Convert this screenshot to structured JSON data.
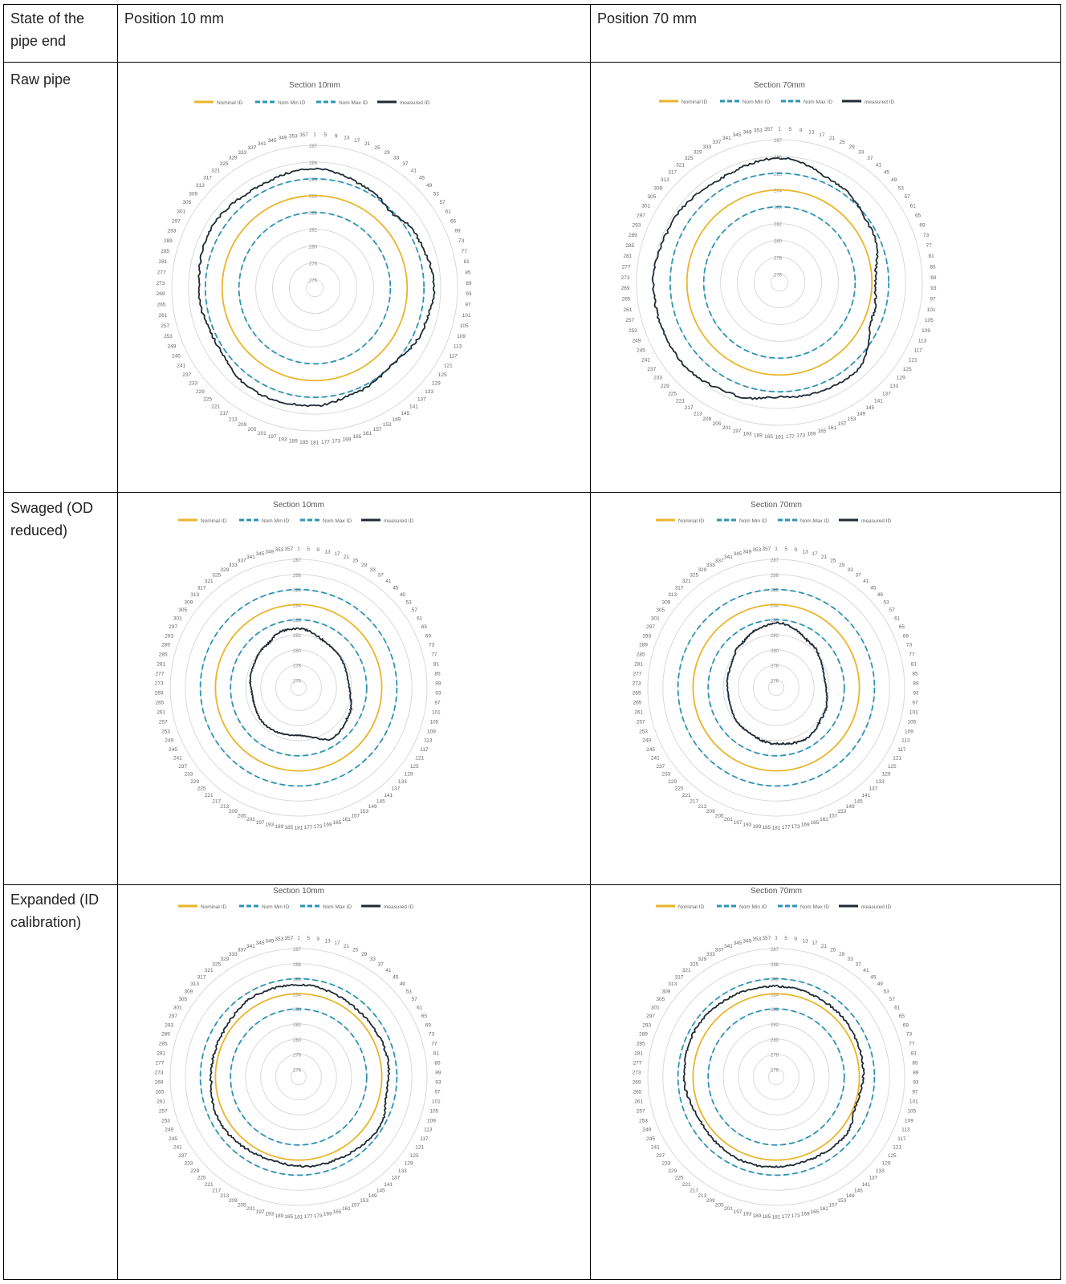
{
  "table": {
    "header": {
      "col0": "State of the pipe end",
      "col1": "Position 10 mm",
      "col2": "Position 70 mm"
    },
    "rows": [
      {
        "label": "Raw pipe"
      },
      {
        "label": "Swaged (OD reduced)"
      },
      {
        "label": "Expanded (ID calibration)"
      }
    ]
  },
  "legend": [
    "Nominal ID",
    "Nom Min ID",
    "Nom Max ID",
    "measured ID"
  ],
  "colors": {
    "nominal": "#e8b52a",
    "nom_min": "#2b93b5",
    "nom_max": "#2b93b5",
    "measured": "#1f2a33",
    "grid": "#d9d9d9"
  },
  "chart_data": [
    {
      "type": "radar",
      "title": "Section 10mm",
      "radial_ticks": [
        276,
        278,
        280,
        282,
        283,
        284,
        285,
        286,
        287
      ],
      "radial_range": [
        276,
        287
      ],
      "angle_labels": [
        "1",
        "5",
        "9",
        "13",
        "17",
        "21",
        "25",
        "29",
        "33",
        "37",
        "41",
        "45",
        "49",
        "53",
        "57",
        "61",
        "65",
        "69",
        "73",
        "77",
        "81",
        "85",
        "89",
        "93",
        "97",
        "101",
        "105",
        "109",
        "113",
        "117",
        "121",
        "125",
        "129",
        "133",
        "137",
        "141",
        "145",
        "149",
        "153",
        "157",
        "161",
        "165",
        "169",
        "173",
        "177",
        "181",
        "185",
        "189",
        "193",
        "197",
        "201",
        "205",
        "209",
        "213",
        "217",
        "221",
        "225",
        "229",
        "233",
        "237",
        "241",
        "245",
        "249",
        "253",
        "257",
        "261",
        "265",
        "269",
        "273",
        "277",
        "281",
        "285",
        "289",
        "293",
        "297",
        "301",
        "305",
        "309",
        "313",
        "317",
        "321",
        "325",
        "329",
        "333",
        "337",
        "341",
        "345",
        "349",
        "353",
        "357"
      ],
      "reference": {
        "nominal": 284,
        "nom_min": 283,
        "nom_max": 285
      },
      "measured": {
        "base": 285.3,
        "profile": [
          [
            0,
            285.6
          ],
          [
            30,
            285.2
          ],
          [
            45,
            284.9
          ],
          [
            60,
            285.3
          ],
          [
            90,
            285.6
          ],
          [
            110,
            285.4
          ],
          [
            135,
            285.0
          ],
          [
            160,
            285.2
          ],
          [
            180,
            285.5
          ],
          [
            210,
            285.6
          ],
          [
            240,
            285.2
          ],
          [
            270,
            285.4
          ],
          [
            300,
            285.6
          ],
          [
            330,
            285.4
          ],
          [
            360,
            285.6
          ]
        ]
      }
    },
    {
      "type": "radar",
      "title": "Section 70mm",
      "radial_ticks": [
        276,
        278,
        280,
        282,
        283,
        284,
        285,
        286,
        287
      ],
      "radial_range": [
        276,
        287
      ],
      "angle_labels": [
        "1",
        "5",
        "9",
        "13",
        "17",
        "21",
        "25",
        "29",
        "33",
        "37",
        "41",
        "45",
        "49",
        "53",
        "57",
        "61",
        "65",
        "69",
        "73",
        "77",
        "81",
        "85",
        "89",
        "93",
        "97",
        "101",
        "105",
        "109",
        "113",
        "117",
        "121",
        "125",
        "129",
        "133",
        "137",
        "141",
        "145",
        "149",
        "153",
        "157",
        "161",
        "165",
        "169",
        "173",
        "177",
        "181",
        "185",
        "189",
        "193",
        "197",
        "201",
        "205",
        "209",
        "213",
        "217",
        "221",
        "225",
        "229",
        "233",
        "237",
        "241",
        "245",
        "249",
        "253",
        "257",
        "261",
        "265",
        "269",
        "273",
        "277",
        "281",
        "285",
        "289",
        "293",
        "297",
        "301",
        "305",
        "309",
        "313",
        "317",
        "321",
        "325",
        "329",
        "333",
        "337",
        "341",
        "345",
        "349",
        "353",
        "357"
      ],
      "reference": {
        "nominal": 284,
        "nom_min": 283,
        "nom_max": 285
      },
      "measured": {
        "base": 285.4,
        "profile": [
          [
            0,
            285.9
          ],
          [
            30,
            285.3
          ],
          [
            60,
            284.8
          ],
          [
            90,
            284.2
          ],
          [
            110,
            284.4
          ],
          [
            140,
            285.5
          ],
          [
            165,
            285.4
          ],
          [
            180,
            285.3
          ],
          [
            200,
            285.7
          ],
          [
            230,
            286.0
          ],
          [
            270,
            286.0
          ],
          [
            300,
            285.8
          ],
          [
            330,
            285.6
          ],
          [
            360,
            285.9
          ]
        ]
      }
    },
    {
      "type": "radar",
      "title": "Section 10mm",
      "radial_ticks": [
        276,
        278,
        280,
        282,
        283,
        284,
        285,
        286,
        287
      ],
      "radial_range": [
        276,
        287
      ],
      "angle_labels": [
        "1",
        "5",
        "9",
        "13",
        "17",
        "21",
        "25",
        "29",
        "33",
        "37",
        "41",
        "45",
        "49",
        "53",
        "57",
        "61",
        "65",
        "69",
        "73",
        "77",
        "81",
        "85",
        "89",
        "93",
        "97",
        "101",
        "105",
        "109",
        "113",
        "117",
        "121",
        "125",
        "129",
        "133",
        "137",
        "141",
        "145",
        "149",
        "153",
        "157",
        "161",
        "165",
        "169",
        "173",
        "177",
        "181",
        "185",
        "189",
        "193",
        "197",
        "201",
        "205",
        "209",
        "213",
        "217",
        "221",
        "225",
        "229",
        "233",
        "237",
        "241",
        "245",
        "249",
        "253",
        "257",
        "261",
        "265",
        "269",
        "273",
        "277",
        "281",
        "285",
        "289",
        "293",
        "297",
        "301",
        "305",
        "309",
        "313",
        "317",
        "321",
        "325",
        "329",
        "333",
        "337",
        "341",
        "345",
        "349",
        "353",
        "357"
      ],
      "reference": {
        "nominal": 284,
        "nom_min": 283,
        "nom_max": 285
      },
      "measured": {
        "base": 281.4,
        "profile": [
          [
            0,
            282.4
          ],
          [
            40,
            281.9
          ],
          [
            80,
            281.6
          ],
          [
            120,
            282.3
          ],
          [
            145,
            282.5
          ],
          [
            180,
            281.3
          ],
          [
            220,
            281.6
          ],
          [
            260,
            281.2
          ],
          [
            290,
            281.6
          ],
          [
            320,
            282.0
          ],
          [
            345,
            282.4
          ],
          [
            360,
            282.4
          ]
        ]
      }
    },
    {
      "type": "radar",
      "title": "Section 70mm",
      "radial_ticks": [
        276,
        278,
        280,
        282,
        283,
        284,
        285,
        286,
        287
      ],
      "radial_range": [
        276,
        287
      ],
      "angle_labels": [
        "1",
        "5",
        "9",
        "13",
        "17",
        "21",
        "25",
        "29",
        "33",
        "37",
        "41",
        "45",
        "49",
        "53",
        "57",
        "61",
        "65",
        "69",
        "73",
        "77",
        "81",
        "85",
        "89",
        "93",
        "97",
        "101",
        "105",
        "109",
        "113",
        "117",
        "121",
        "125",
        "129",
        "133",
        "137",
        "141",
        "145",
        "149",
        "153",
        "157",
        "161",
        "165",
        "169",
        "173",
        "177",
        "181",
        "185",
        "189",
        "193",
        "197",
        "201",
        "205",
        "209",
        "213",
        "217",
        "221",
        "225",
        "229",
        "233",
        "237",
        "241",
        "245",
        "249",
        "253",
        "257",
        "261",
        "265",
        "269",
        "273",
        "277",
        "281",
        "285",
        "289",
        "293",
        "297",
        "301",
        "305",
        "309",
        "313",
        "317",
        "321",
        "325",
        "329",
        "333",
        "337",
        "341",
        "345",
        "349",
        "353",
        "357"
      ],
      "reference": {
        "nominal": 284,
        "nom_min": 283,
        "nom_max": 285
      },
      "measured": {
        "base": 281.7,
        "profile": [
          [
            0,
            282.8
          ],
          [
            40,
            282.2
          ],
          [
            80,
            281.5
          ],
          [
            120,
            282.1
          ],
          [
            150,
            282.4
          ],
          [
            180,
            282.2
          ],
          [
            220,
            281.9
          ],
          [
            260,
            281.4
          ],
          [
            290,
            281.6
          ],
          [
            320,
            282.2
          ],
          [
            345,
            282.6
          ],
          [
            360,
            282.8
          ]
        ]
      }
    },
    {
      "type": "radar",
      "title": "Section 10mm",
      "radial_ticks": [
        276,
        278,
        280,
        282,
        283,
        284,
        285,
        286,
        287
      ],
      "radial_range": [
        276,
        287
      ],
      "angle_labels": [
        "1",
        "5",
        "9",
        "13",
        "17",
        "21",
        "25",
        "29",
        "33",
        "37",
        "41",
        "45",
        "49",
        "53",
        "57",
        "61",
        "65",
        "69",
        "73",
        "77",
        "81",
        "85",
        "89",
        "93",
        "97",
        "101",
        "105",
        "109",
        "113",
        "117",
        "121",
        "125",
        "129",
        "133",
        "137",
        "141",
        "145",
        "149",
        "153",
        "157",
        "161",
        "165",
        "169",
        "173",
        "177",
        "181",
        "185",
        "189",
        "193",
        "197",
        "201",
        "205",
        "209",
        "213",
        "217",
        "221",
        "225",
        "229",
        "233",
        "237",
        "241",
        "245",
        "249",
        "253",
        "257",
        "261",
        "265",
        "269",
        "273",
        "277",
        "281",
        "285",
        "289",
        "293",
        "297",
        "301",
        "305",
        "309",
        "313",
        "317",
        "321",
        "325",
        "329",
        "333",
        "337",
        "341",
        "345",
        "349",
        "353",
        "357"
      ],
      "reference": {
        "nominal": 284,
        "nom_min": 283,
        "nom_max": 285
      },
      "measured": {
        "base": 284.5,
        "profile": [
          [
            0,
            284.6
          ],
          [
            40,
            284.4
          ],
          [
            80,
            284.5
          ],
          [
            100,
            284.4
          ],
          [
            120,
            284.8
          ],
          [
            160,
            284.5
          ],
          [
            200,
            284.3
          ],
          [
            240,
            284.5
          ],
          [
            270,
            284.3
          ],
          [
            300,
            284.3
          ],
          [
            330,
            284.6
          ],
          [
            360,
            284.6
          ]
        ]
      }
    },
    {
      "type": "radar",
      "title": "Section 70mm",
      "radial_ticks": [
        276,
        278,
        280,
        282,
        283,
        284,
        285,
        286,
        287
      ],
      "radial_range": [
        276,
        287
      ],
      "angle_labels": [
        "1",
        "5",
        "9",
        "13",
        "17",
        "21",
        "25",
        "29",
        "33",
        "37",
        "41",
        "45",
        "49",
        "53",
        "57",
        "61",
        "65",
        "69",
        "73",
        "77",
        "81",
        "85",
        "89",
        "93",
        "97",
        "101",
        "105",
        "109",
        "113",
        "117",
        "121",
        "125",
        "129",
        "133",
        "137",
        "141",
        "145",
        "149",
        "153",
        "157",
        "161",
        "165",
        "169",
        "173",
        "177",
        "181",
        "185",
        "189",
        "193",
        "197",
        "201",
        "205",
        "209",
        "213",
        "217",
        "221",
        "225",
        "229",
        "233",
        "237",
        "241",
        "245",
        "249",
        "253",
        "257",
        "261",
        "265",
        "269",
        "273",
        "277",
        "281",
        "285",
        "289",
        "293",
        "297",
        "301",
        "305",
        "309",
        "313",
        "317",
        "321",
        "325",
        "329",
        "333",
        "337",
        "341",
        "345",
        "349",
        "353",
        "357"
      ],
      "reference": {
        "nominal": 284,
        "nom_min": 283,
        "nom_max": 285
      },
      "measured": {
        "base": 284.5,
        "profile": [
          [
            0,
            284.5
          ],
          [
            40,
            284.4
          ],
          [
            80,
            284.3
          ],
          [
            110,
            284.1
          ],
          [
            130,
            284.5
          ],
          [
            160,
            284.4
          ],
          [
            200,
            284.5
          ],
          [
            240,
            284.3
          ],
          [
            270,
            284.6
          ],
          [
            300,
            284.7
          ],
          [
            330,
            284.6
          ],
          [
            360,
            284.5
          ]
        ]
      }
    }
  ]
}
